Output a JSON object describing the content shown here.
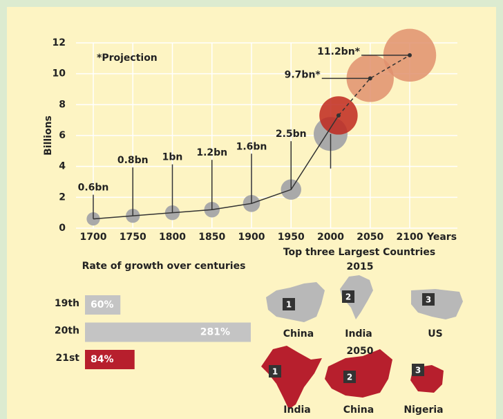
{
  "chart_data": [
    {
      "type": "bubble-line",
      "ylabel": "Billions",
      "xlabel": "Years",
      "annotation": "*Projection",
      "x": [
        1700,
        1750,
        1800,
        1850,
        1900,
        1950,
        2000,
        2010,
        2050,
        2100
      ],
      "values": [
        0.6,
        0.8,
        1,
        1.2,
        1.6,
        2.5,
        6.1,
        7.3,
        9.7,
        11.2
      ],
      "value_labels": [
        "0.6bn",
        "0.8bn",
        "1bn",
        "1.2bn",
        "1.6bn",
        "2.5bn",
        null,
        null,
        "9.7bn*",
        "11.2bn*"
      ],
      "colors": [
        "#a9a9a9",
        "#a9a9a9",
        "#a9a9a9",
        "#a9a9a9",
        "#a9a9a9",
        "#a9a9a9",
        "#a9a9a9",
        "#c0281e",
        "#e0906e",
        "#e0906e"
      ],
      "xlim": [
        1700,
        2100
      ],
      "xticks": [
        1700,
        1750,
        1800,
        1850,
        1900,
        1950,
        2000,
        2050,
        2100
      ],
      "ylim": [
        0,
        12
      ],
      "yticks": [
        0,
        2,
        4,
        6,
        8,
        10,
        12
      ],
      "grid": true
    },
    {
      "type": "hbar",
      "title": "Rate of growth over centuries",
      "categories": [
        "19th",
        "20th",
        "21st"
      ],
      "values": [
        60,
        281,
        84
      ],
      "value_labels": [
        "60%",
        "281%",
        "84%"
      ],
      "colors": [
        "#c4c4c4",
        "#c4c4c4",
        "#b71f2d"
      ],
      "xlim": [
        0,
        281
      ]
    }
  ],
  "countries": {
    "title": "Top three Largest Countries",
    "groups": [
      {
        "year": "2015",
        "items": [
          {
            "rank": "1",
            "name": "China"
          },
          {
            "rank": "2",
            "name": "India"
          },
          {
            "rank": "3",
            "name": "US"
          }
        ]
      },
      {
        "year": "2050",
        "items": [
          {
            "rank": "1",
            "name": "India"
          },
          {
            "rank": "2",
            "name": "China"
          },
          {
            "rank": "3",
            "name": "Nigeria"
          }
        ]
      }
    ]
  }
}
